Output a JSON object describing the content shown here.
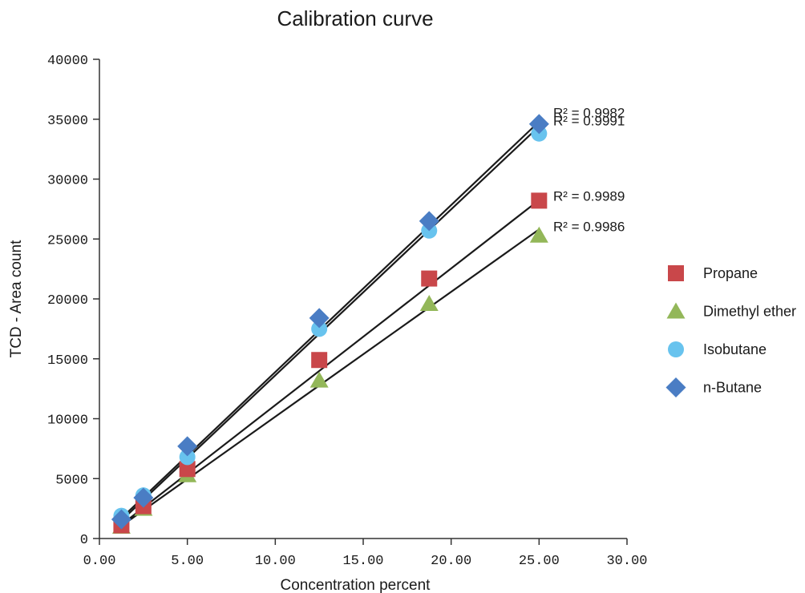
{
  "chart_data": {
    "type": "scatter",
    "title": "Calibration curve",
    "xlabel": "Concentration percent",
    "ylabel": "TCD - Area count",
    "xlim": [
      0,
      30
    ],
    "ylim": [
      0,
      40000
    ],
    "x_ticks": [
      "0.00",
      "5.00",
      "10.00",
      "15.00",
      "20.00",
      "25.00",
      "30.00"
    ],
    "y_ticks": [
      "0",
      "5000",
      "10000",
      "15000",
      "20000",
      "25000",
      "30000",
      "35000",
      "40000"
    ],
    "grid": false,
    "legend_position": "right",
    "series": [
      {
        "name": "Propane",
        "marker": "square",
        "color": "#c9474a",
        "x": [
          1.25,
          2.5,
          5.0,
          12.5,
          18.75,
          25.0
        ],
        "y": [
          1100,
          2700,
          5800,
          14900,
          21700,
          28200
        ],
        "fit": {
          "x0": 1.25,
          "y0": 1150,
          "x1": 25.0,
          "y1": 28250
        },
        "r2": "R² = 0.9989"
      },
      {
        "name": "Dimethyl ether",
        "marker": "triangle",
        "color": "#93b759",
        "x": [
          1.25,
          2.5,
          5.0,
          12.5,
          18.75,
          25.0
        ],
        "y": [
          1000,
          2500,
          5300,
          13200,
          19600,
          25300
        ],
        "fit": {
          "x0": 1.25,
          "y0": 1050,
          "x1": 25.0,
          "y1": 25800
        },
        "r2": "R² = 0.9986"
      },
      {
        "name": "Isobutane",
        "marker": "circle",
        "color": "#68c3ee",
        "x": [
          1.25,
          2.5,
          5.0,
          12.5,
          18.75,
          25.0
        ],
        "y": [
          1900,
          3600,
          6800,
          17500,
          25700,
          33800
        ],
        "fit": {
          "x0": 1.25,
          "y0": 1500,
          "x1": 25.0,
          "y1": 34400
        },
        "r2": "R² = 0.9991"
      },
      {
        "name": "n-Butane",
        "marker": "diamond",
        "color": "#4a7dc4",
        "x": [
          1.25,
          2.5,
          5.0,
          12.5,
          18.75,
          25.0
        ],
        "y": [
          1600,
          3400,
          7700,
          18400,
          26500,
          34600
        ],
        "fit": {
          "x0": 1.25,
          "y0": 1700,
          "x1": 25.0,
          "y1": 34800
        },
        "r2": "R² = 0.9982"
      }
    ]
  }
}
